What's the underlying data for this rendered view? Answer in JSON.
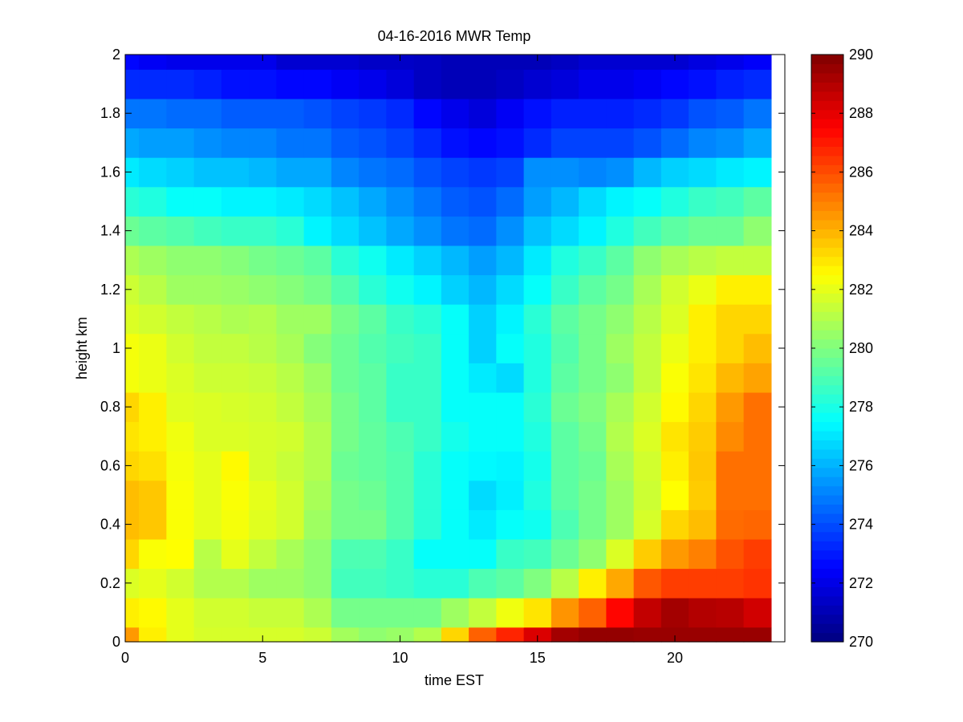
{
  "chart_data": {
    "type": "heatmap",
    "title": "04-16-2016 MWR Temp",
    "xlabel": "time EST",
    "ylabel": "height km",
    "xlim": [
      0,
      24
    ],
    "ylim": [
      0,
      2
    ],
    "x_ticks": [
      0,
      5,
      10,
      15,
      20
    ],
    "y_ticks": [
      0,
      0.2,
      0.4,
      0.6,
      0.8,
      1,
      1.2,
      1.4,
      1.6,
      1.8,
      2
    ],
    "x_centers": [
      0,
      1,
      2,
      3,
      4,
      5,
      6,
      7,
      8,
      9,
      10,
      11,
      12,
      13,
      14,
      15,
      16,
      17,
      18,
      19,
      20,
      21,
      22,
      23
    ],
    "data_extent_x": [
      0,
      23.5
    ],
    "y_edges": [
      0,
      0.05,
      0.15,
      0.25,
      0.35,
      0.45,
      0.55,
      0.65,
      0.75,
      0.85,
      0.95,
      1.05,
      1.15,
      1.25,
      1.35,
      1.45,
      1.55,
      1.65,
      1.75,
      1.85,
      1.95,
      2.0
    ],
    "colorbar": {
      "min": 270,
      "max": 290,
      "ticks": [
        270,
        272,
        274,
        276,
        278,
        280,
        282,
        284,
        286,
        288,
        290
      ],
      "colormap": "jet"
    },
    "values": [
      [
        284.5,
        282.8,
        282.0,
        281.7,
        281.7,
        281.7,
        281.7,
        281.5,
        280.7,
        280.3,
        280.5,
        281.0,
        283.3,
        285.6,
        286.8,
        288.2,
        289.3,
        289.6,
        289.6,
        289.5,
        289.5,
        289.5,
        289.5,
        289.5
      ],
      [
        282.8,
        282.6,
        282.0,
        281.6,
        281.6,
        281.4,
        281.4,
        280.9,
        279.8,
        279.8,
        279.8,
        279.8,
        280.6,
        281.3,
        282.2,
        283.0,
        284.6,
        285.6,
        287.4,
        288.7,
        289.3,
        289.0,
        288.9,
        288.4
      ],
      [
        281.8,
        282.0,
        281.6,
        281.0,
        281.0,
        280.6,
        280.6,
        280.3,
        278.8,
        278.8,
        278.6,
        278.3,
        278.3,
        279.0,
        279.3,
        280.0,
        281.1,
        282.8,
        284.2,
        285.8,
        286.3,
        286.3,
        286.3,
        286.5
      ],
      [
        283.3,
        282.4,
        282.5,
        281.1,
        282.0,
        281.3,
        280.8,
        280.3,
        279.0,
        279.0,
        278.6,
        277.6,
        277.6,
        277.6,
        278.6,
        278.8,
        279.6,
        280.3,
        281.8,
        283.5,
        284.5,
        285.0,
        285.9,
        286.3
      ],
      [
        283.8,
        283.6,
        282.4,
        282.0,
        282.3,
        281.9,
        281.6,
        280.6,
        279.8,
        279.8,
        279.1,
        278.3,
        277.6,
        277.1,
        277.6,
        277.8,
        279.0,
        279.8,
        280.6,
        281.7,
        283.3,
        283.8,
        285.4,
        285.5
      ],
      [
        283.8,
        283.6,
        282.4,
        282.0,
        282.4,
        282.0,
        281.6,
        280.8,
        279.8,
        279.6,
        279.1,
        278.3,
        277.6,
        276.8,
        277.2,
        278.1,
        279.3,
        279.8,
        280.6,
        281.5,
        282.5,
        283.5,
        285.3,
        285.3
      ],
      [
        283.3,
        283.1,
        282.3,
        282.0,
        282.6,
        281.7,
        281.4,
        281.0,
        279.6,
        279.4,
        279.1,
        278.3,
        277.6,
        277.4,
        277.3,
        277.9,
        279.3,
        279.6,
        280.8,
        281.6,
        282.8,
        283.6,
        285.3,
        285.3
      ],
      [
        283.0,
        282.8,
        282.2,
        281.8,
        281.8,
        281.7,
        281.6,
        281.0,
        279.8,
        279.4,
        279.0,
        278.6,
        277.9,
        277.6,
        277.6,
        278.1,
        279.3,
        279.8,
        281.0,
        281.8,
        283.0,
        283.5,
        284.8,
        285.3
      ],
      [
        283.3,
        282.8,
        281.9,
        281.8,
        281.7,
        281.6,
        281.3,
        280.8,
        279.8,
        279.3,
        278.6,
        278.6,
        277.6,
        277.6,
        277.6,
        278.3,
        279.6,
        280.0,
        280.8,
        281.6,
        282.6,
        283.3,
        284.5,
        285.3
      ],
      [
        282.3,
        282.1,
        281.8,
        281.5,
        281.5,
        281.4,
        281.1,
        280.6,
        279.6,
        279.3,
        278.6,
        278.6,
        277.6,
        277.1,
        276.8,
        278.1,
        279.3,
        279.8,
        280.3,
        281.3,
        282.4,
        283.0,
        283.9,
        284.3
      ],
      [
        282.3,
        282.1,
        281.6,
        281.3,
        281.3,
        281.1,
        280.8,
        280.1,
        279.6,
        279.1,
        278.8,
        278.6,
        277.6,
        276.6,
        277.6,
        278.1,
        279.1,
        279.8,
        280.6,
        281.3,
        282.1,
        282.8,
        283.3,
        283.8
      ],
      [
        281.8,
        281.6,
        281.3,
        281.1,
        280.9,
        281.0,
        280.6,
        280.6,
        279.8,
        279.3,
        278.6,
        278.3,
        277.6,
        276.6,
        277.3,
        278.3,
        279.3,
        279.8,
        280.3,
        281.1,
        281.8,
        282.8,
        283.3,
        283.3
      ],
      [
        281.5,
        281.1,
        280.6,
        280.6,
        280.5,
        280.3,
        280.1,
        279.8,
        279.1,
        278.3,
        277.8,
        277.3,
        276.6,
        276.1,
        276.8,
        277.6,
        278.6,
        279.3,
        279.8,
        280.8,
        281.6,
        282.1,
        282.8,
        282.8
      ],
      [
        280.9,
        280.6,
        280.3,
        280.3,
        280.1,
        279.8,
        279.6,
        279.3,
        278.3,
        277.8,
        277.1,
        276.6,
        276.1,
        275.6,
        276.1,
        277.1,
        278.1,
        278.6,
        279.3,
        280.3,
        280.8,
        281.1,
        281.3,
        281.3
      ],
      [
        279.6,
        279.3,
        279.1,
        278.8,
        278.6,
        278.6,
        278.3,
        277.3,
        276.8,
        276.3,
        275.8,
        275.3,
        274.8,
        274.6,
        275.3,
        276.3,
        276.8,
        277.3,
        278.1,
        278.8,
        279.3,
        279.6,
        279.6,
        280.3
      ],
      [
        278.3,
        278.1,
        277.6,
        277.6,
        277.3,
        277.3,
        277.1,
        276.8,
        276.3,
        275.8,
        275.3,
        274.8,
        274.3,
        274.1,
        274.6,
        275.6,
        276.1,
        276.8,
        277.3,
        277.6,
        278.1,
        278.6,
        278.8,
        279.3
      ],
      [
        277.1,
        276.8,
        276.6,
        276.3,
        276.3,
        276.1,
        275.8,
        275.8,
        275.1,
        274.8,
        274.6,
        274.1,
        273.8,
        273.6,
        273.8,
        275.3,
        275.3,
        275.1,
        275.3,
        276.1,
        276.6,
        276.8,
        277.1,
        277.3
      ],
      [
        275.8,
        275.6,
        275.6,
        275.3,
        275.1,
        275.1,
        274.8,
        274.8,
        274.3,
        274.1,
        273.8,
        273.3,
        272.8,
        272.6,
        272.8,
        273.3,
        273.8,
        273.8,
        273.8,
        274.1,
        274.6,
        275.1,
        275.3,
        275.8
      ],
      [
        274.8,
        274.8,
        274.6,
        274.6,
        274.3,
        274.3,
        274.3,
        274.1,
        273.8,
        273.6,
        273.3,
        272.6,
        272.1,
        271.8,
        272.3,
        272.8,
        273.1,
        273.1,
        273.1,
        273.3,
        273.6,
        274.1,
        274.3,
        274.8
      ],
      [
        273.3,
        273.3,
        273.3,
        273.1,
        272.8,
        272.8,
        272.6,
        272.6,
        272.3,
        272.1,
        271.8,
        271.3,
        271.1,
        271.1,
        271.3,
        271.6,
        271.8,
        272.1,
        272.1,
        272.3,
        272.6,
        272.8,
        273.1,
        273.3
      ],
      [
        272.6,
        272.3,
        272.1,
        272.1,
        272.1,
        272.1,
        271.6,
        271.6,
        271.6,
        271.4,
        271.4,
        271.3,
        271.1,
        271.1,
        271.1,
        271.1,
        271.3,
        271.6,
        271.6,
        271.6,
        271.6,
        271.9,
        272.1,
        272.4
      ]
    ]
  }
}
